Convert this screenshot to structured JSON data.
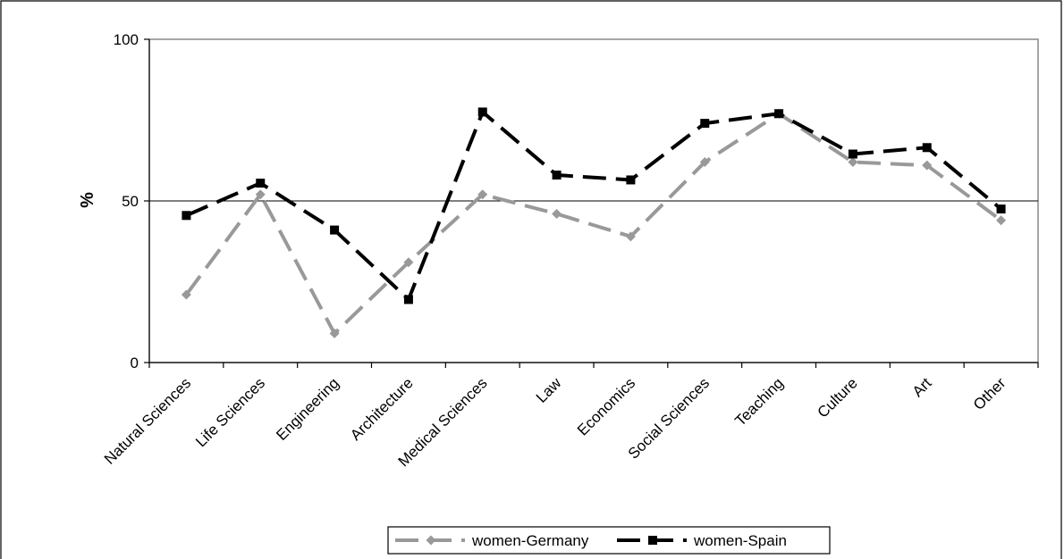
{
  "chart_data": {
    "type": "line",
    "ylabel": "%",
    "ylim": [
      0,
      100
    ],
    "yticks": [
      0,
      50,
      100
    ],
    "grid": "horizontal line at 50",
    "legend": "bottom",
    "categories": [
      "Natural Sciences",
      "Life Sciences",
      "Engineering",
      "Architecture",
      "Medical Sciences",
      "Law",
      "Economics",
      "Social Sciences",
      "Teaching",
      "Culture",
      "Art",
      "Other"
    ],
    "series": [
      {
        "name": "women-Germany",
        "color": "#999999",
        "marker": "diamond",
        "values": [
          21,
          52,
          9,
          31,
          52,
          46,
          39,
          62,
          77,
          62,
          61,
          44
        ]
      },
      {
        "name": "women-Spain",
        "color": "#000000",
        "marker": "square",
        "values": [
          45.5,
          55.5,
          41,
          19.5,
          77.5,
          58,
          56.5,
          74,
          77,
          64.5,
          66.5,
          47.5
        ]
      }
    ]
  }
}
